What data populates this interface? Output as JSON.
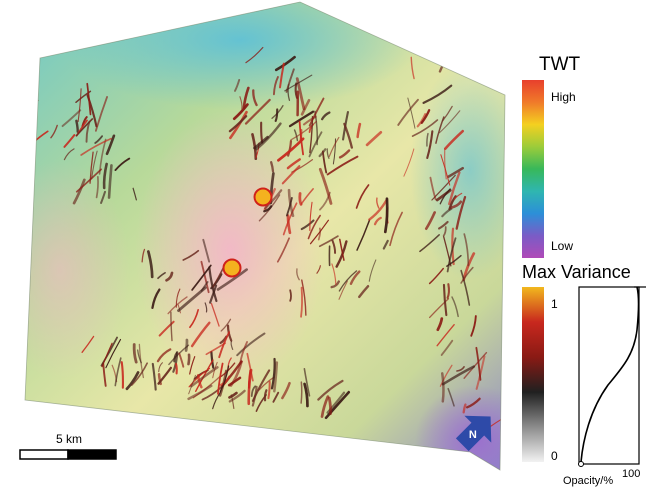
{
  "twt_legend": {
    "title": "TWT",
    "high_label": "High",
    "low_label": "Low",
    "color_stops": [
      "#e8402c",
      "#f07a2a",
      "#f4d020",
      "#9ccc3a",
      "#38b85a",
      "#2fb6b0",
      "#2c8fd8",
      "#7a5cc6",
      "#b04ab8"
    ]
  },
  "variance_legend": {
    "title": "Max Variance",
    "max_label": "1",
    "min_label": "0",
    "color_stops": [
      "#f2b81e",
      "#c8281e",
      "#8a1a14",
      "#202020",
      "#8c8c8c",
      "#f2f2f2"
    ]
  },
  "opacity_graph": {
    "axis_label": "Opacity/%",
    "max_label": "100"
  },
  "scale_bar": {
    "label": "5 km"
  },
  "north_arrow": {
    "label": "N",
    "color": "#2e4aa8"
  },
  "well_markers": {
    "count": 2,
    "fill": "#f4b21f",
    "stroke": "#d0221a"
  }
}
